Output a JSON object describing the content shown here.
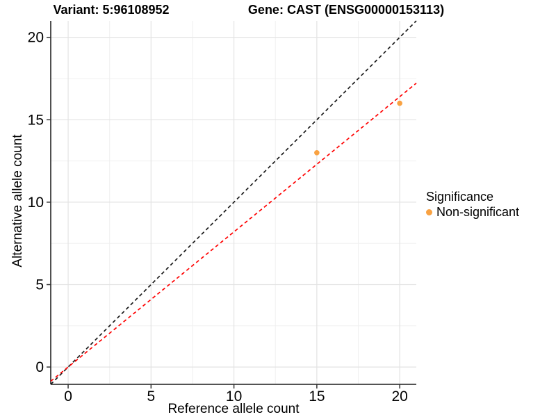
{
  "header": {
    "variant_title": "Variant: 5:96108952",
    "gene_title": "Gene: CAST (ENSG00000153113)"
  },
  "legend": {
    "title": "Significance",
    "items": [
      {
        "label": "Non-significant",
        "color": "#F9A242"
      }
    ]
  },
  "style": {
    "grid_major_color": "#E3E3E3",
    "grid_minor_color": "#F0F0F0",
    "axis_line_color": "#3C3C3C",
    "tick_mark_color": "#333333",
    "tick_label_color": "#000000"
  },
  "chart_data": {
    "type": "scatter",
    "title": "Variant: 5:96108952 — Gene: CAST (ENSG00000153113)",
    "xlabel": "Reference allele count",
    "ylabel": "Alternative allele count",
    "xlim": [
      -1.05,
      21
    ],
    "ylim": [
      -1.05,
      21
    ],
    "x_ticks": [
      0,
      5,
      10,
      15,
      20
    ],
    "y_ticks": [
      0,
      5,
      10,
      15,
      20
    ],
    "x_minor_gridlines": [
      2.5,
      7.5,
      12.5,
      17.5
    ],
    "y_minor_gridlines": [
      2.5,
      7.5,
      12.5,
      17.5
    ],
    "grid": true,
    "legend_position": "right",
    "series": [
      {
        "name": "Non-significant",
        "color": "#F9A242",
        "marker": "circle",
        "points": [
          [
            15,
            13
          ],
          [
            20,
            16
          ]
        ]
      }
    ],
    "reference_lines": [
      {
        "name": "identity-line",
        "slope": 1.0,
        "intercept": 0,
        "color": "#1A1A1A",
        "style": "dashed"
      },
      {
        "name": "allelic-ratio-line",
        "slope": 0.82,
        "intercept": 0,
        "color": "#FF0000",
        "style": "dashed"
      }
    ]
  }
}
